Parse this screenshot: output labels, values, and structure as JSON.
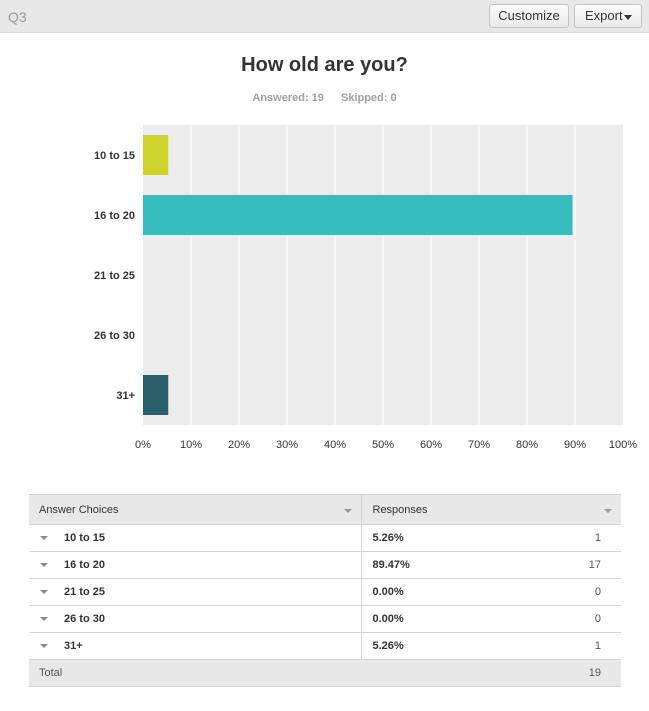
{
  "header": {
    "question_id": "Q3",
    "customize_label": "Customize",
    "export_label": "Export"
  },
  "question": {
    "title": "How old are you?",
    "answered": "Answered: 19",
    "skipped": "Skipped: 0"
  },
  "chart_data": {
    "type": "bar",
    "orientation": "horizontal",
    "categories": [
      "10 to 15",
      "16 to 20",
      "21 to 25",
      "26 to 30",
      "31+"
    ],
    "values": [
      5.26,
      89.47,
      0,
      0,
      5.26
    ],
    "colors": [
      "#cdd32a",
      "#35bcbd",
      "#35bcbd",
      "#35bcbd",
      "#2b5e6b"
    ],
    "xlim": [
      0,
      100
    ],
    "xticks": [
      "0%",
      "10%",
      "20%",
      "30%",
      "40%",
      "50%",
      "60%",
      "70%",
      "80%",
      "90%",
      "100%"
    ],
    "grid": true,
    "background": "#ececec",
    "grid_color": "#ffffff"
  },
  "table": {
    "headers": {
      "choices": "Answer Choices",
      "responses": "Responses"
    },
    "rows": [
      {
        "choice": "10 to 15",
        "percent": "5.26%",
        "count": "1"
      },
      {
        "choice": "16 to 20",
        "percent": "89.47%",
        "count": "17"
      },
      {
        "choice": "21 to 25",
        "percent": "0.00%",
        "count": "0"
      },
      {
        "choice": "26 to 30",
        "percent": "0.00%",
        "count": "0"
      },
      {
        "choice": "31+",
        "percent": "5.26%",
        "count": "1"
      }
    ],
    "total_label": "Total",
    "total_count": "19"
  }
}
